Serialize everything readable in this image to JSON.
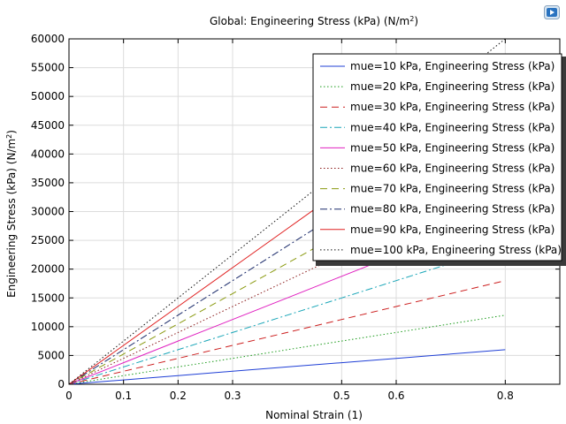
{
  "chart_data": {
    "type": "line",
    "title": "Global: Engineering Stress (kPa) (N/m",
    "title_sup": "2",
    "title_suffix": ")",
    "xlabel": "Nominal Strain (1)",
    "ylabel": "Engineering Stress (kPa) (N/m",
    "ylabel_sup": "2",
    "ylabel_suffix": ")",
    "xlim": [
      0,
      0.9
    ],
    "ylim": [
      0,
      60000
    ],
    "xticks": [
      0,
      0.1,
      0.2,
      0.3,
      0.5,
      0.6,
      0.8
    ],
    "xtick_labels": [
      "0",
      "0.1",
      "0.2",
      "0.3",
      "0.5",
      "0.6",
      "0.8"
    ],
    "yticks": [
      0,
      5000,
      10000,
      15000,
      20000,
      25000,
      30000,
      35000,
      40000,
      45000,
      50000,
      55000,
      60000
    ],
    "ytick_labels": [
      "0",
      "5000",
      "10000",
      "15000",
      "20000",
      "25000",
      "30000",
      "35000",
      "40000",
      "45000",
      "50000",
      "55000",
      "60000"
    ],
    "grid": true,
    "legend_position": "top-right",
    "x": [
      0,
      0.1,
      0.2,
      0.3,
      0.4,
      0.5,
      0.6,
      0.7,
      0.8
    ],
    "series": [
      {
        "name": "mue=10 kPa, Engineering Stress (kPa)",
        "color": "#1f3fd6",
        "dash": "",
        "values": [
          0,
          750,
          1500,
          2250,
          3000,
          3750,
          4500,
          5250,
          6000
        ]
      },
      {
        "name": "mue=20 kPa, Engineering Stress (kPa)",
        "color": "#1a9a1a",
        "dash": "1.5,2.5",
        "values": [
          0,
          1500,
          3000,
          4500,
          6000,
          7500,
          9000,
          10500,
          12000
        ]
      },
      {
        "name": "mue=30 kPa, Engineering Stress (kPa)",
        "color": "#cc1f1f",
        "dash": "8,5",
        "values": [
          0,
          2250,
          4500,
          6750,
          9000,
          11250,
          13500,
          15750,
          18000
        ]
      },
      {
        "name": "mue=40 kPa, Engineering Stress (kPa)",
        "color": "#1aa6b8",
        "dash": "8,3,2,3",
        "values": [
          0,
          3000,
          6000,
          9000,
          12000,
          15000,
          18000,
          21000,
          24000
        ]
      },
      {
        "name": "mue=50 kPa, Engineering Stress (kPa)",
        "color": "#e020c0",
        "dash": "",
        "values": [
          0,
          3750,
          7500,
          11250,
          15000,
          18750,
          22500,
          26250,
          30000
        ]
      },
      {
        "name": "mue=60 kPa, Engineering Stress (kPa)",
        "color": "#8a1a1a",
        "dash": "1.5,2.5",
        "values": [
          0,
          4500,
          9000,
          13500,
          18000,
          22500,
          27000,
          31500,
          36000
        ]
      },
      {
        "name": "mue=70 kPa, Engineering Stress (kPa)",
        "color": "#8a9a10",
        "dash": "8,5",
        "values": [
          0,
          5250,
          10500,
          15750,
          21000,
          26250,
          31500,
          36750,
          42000
        ]
      },
      {
        "name": "mue=80 kPa, Engineering Stress (kPa)",
        "color": "#1a2a6a",
        "dash": "8,3,2,3",
        "values": [
          0,
          6000,
          12000,
          18000,
          24000,
          30000,
          36000,
          42000,
          48000
        ]
      },
      {
        "name": "mue=90 kPa, Engineering Stress (kPa)",
        "color": "#e02020",
        "dash": "",
        "values": [
          0,
          6750,
          13500,
          20250,
          27000,
          33750,
          40500,
          47250,
          54000
        ]
      },
      {
        "name": "mue=100 kPa, Engineering Stress (kPa)",
        "color": "#101010",
        "dash": "1.5,2.5",
        "values": [
          0,
          7500,
          15000,
          22500,
          30000,
          37500,
          45000,
          52500,
          60000
        ]
      }
    ]
  }
}
